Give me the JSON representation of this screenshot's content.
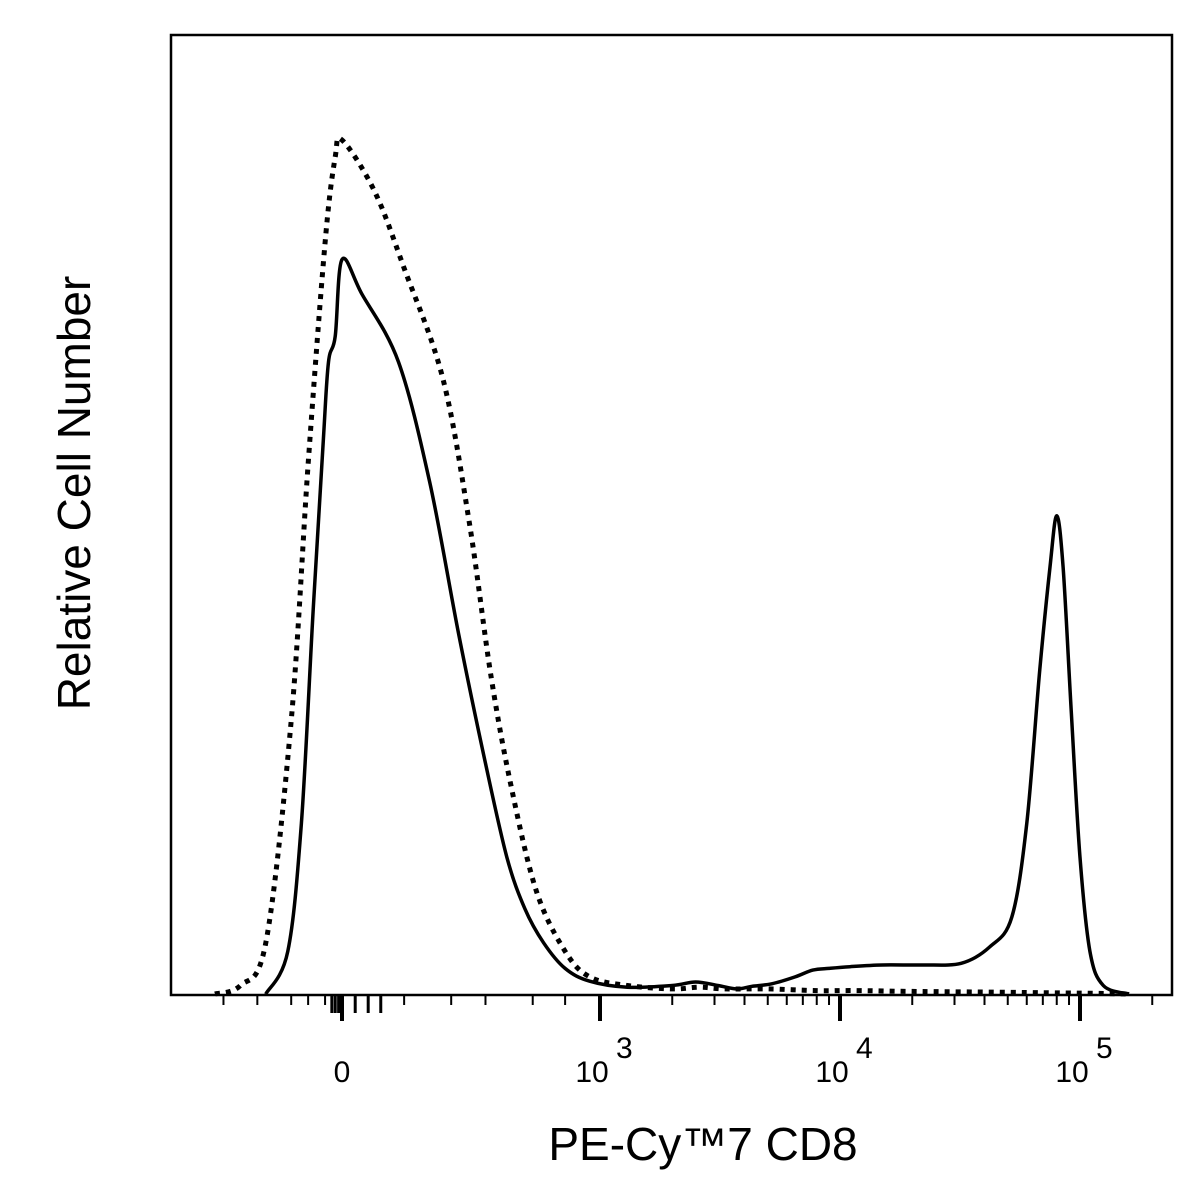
{
  "chart_data": {
    "type": "line",
    "title": "",
    "xlabel": "PE-Cy™7  CD8",
    "ylabel": "Relative Cell Number",
    "x_scale": "biexponential",
    "x_ticks": [
      {
        "value": 0,
        "base": "0",
        "exp": ""
      },
      {
        "value": 1000,
        "base": "10",
        "exp": "3"
      },
      {
        "value": 10000,
        "base": "10",
        "exp": "4"
      },
      {
        "value": 100000,
        "base": "10",
        "exp": "5"
      }
    ],
    "y_ticks_shown": false,
    "grid": false,
    "legend": "none",
    "series": [
      {
        "style": "dotted",
        "color": "#000000",
        "points": [
          [
            -750,
            0.0
          ],
          [
            -600,
            0.01
          ],
          [
            -450,
            0.06
          ],
          [
            -300,
            0.32
          ],
          [
            -200,
            0.62
          ],
          [
            -100,
            0.88
          ],
          [
            -40,
            0.98
          ],
          [
            0,
            1.0
          ],
          [
            50,
            0.94
          ],
          [
            100,
            0.85
          ],
          [
            180,
            0.72
          ],
          [
            250,
            0.55
          ],
          [
            320,
            0.37
          ],
          [
            400,
            0.24
          ],
          [
            520,
            0.12
          ],
          [
            700,
            0.05
          ],
          [
            900,
            0.02
          ],
          [
            1300,
            0.01
          ],
          [
            2000,
            0.006
          ],
          [
            2600,
            0.008
          ],
          [
            3300,
            0.006
          ],
          [
            5000,
            0.006
          ],
          [
            8000,
            0.004
          ],
          [
            12000,
            0.004
          ],
          [
            20000,
            0.003
          ],
          [
            50000,
            0.002
          ],
          [
            100000,
            0.001
          ],
          [
            160000,
            0.0
          ]
        ]
      },
      {
        "style": "solid",
        "color": "#000000",
        "points": [
          [
            -450,
            0.0
          ],
          [
            -320,
            0.05
          ],
          [
            -240,
            0.2
          ],
          [
            -170,
            0.45
          ],
          [
            -110,
            0.65
          ],
          [
            -80,
            0.74
          ],
          [
            -40,
            0.77
          ],
          [
            0,
            0.86
          ],
          [
            30,
            0.82
          ],
          [
            90,
            0.74
          ],
          [
            150,
            0.6
          ],
          [
            220,
            0.42
          ],
          [
            300,
            0.27
          ],
          [
            380,
            0.16
          ],
          [
            460,
            0.1
          ],
          [
            560,
            0.06
          ],
          [
            700,
            0.03
          ],
          [
            900,
            0.015
          ],
          [
            1300,
            0.008
          ],
          [
            2000,
            0.01
          ],
          [
            2500,
            0.014
          ],
          [
            3100,
            0.01
          ],
          [
            3700,
            0.006
          ],
          [
            4300,
            0.009
          ],
          [
            5200,
            0.012
          ],
          [
            6500,
            0.02
          ],
          [
            7700,
            0.028
          ],
          [
            9000,
            0.03
          ],
          [
            11000,
            0.032
          ],
          [
            15000,
            0.034
          ],
          [
            22000,
            0.034
          ],
          [
            32000,
            0.036
          ],
          [
            42000,
            0.055
          ],
          [
            52000,
            0.09
          ],
          [
            60000,
            0.2
          ],
          [
            68000,
            0.38
          ],
          [
            75000,
            0.5
          ],
          [
            80000,
            0.56
          ],
          [
            85000,
            0.5
          ],
          [
            92000,
            0.33
          ],
          [
            100000,
            0.16
          ],
          [
            110000,
            0.05
          ],
          [
            125000,
            0.01
          ],
          [
            160000,
            0.0
          ]
        ]
      }
    ]
  }
}
